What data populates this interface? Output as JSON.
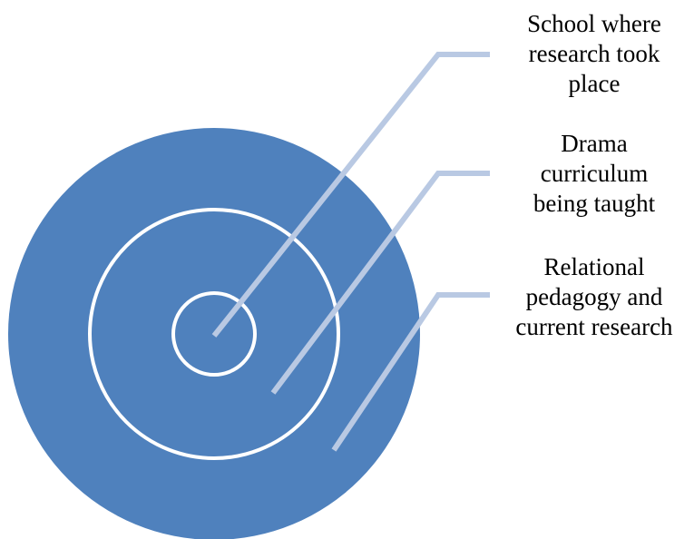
{
  "diagram": {
    "type": "concentric-circles",
    "colors": {
      "outer_fill": "#4f81bd",
      "ring_stroke": "#ffffff",
      "leader_line": "#b9c9e3"
    },
    "layers": [
      {
        "id": "inner",
        "label": "School where\nresearch took\nplace"
      },
      {
        "id": "middle",
        "label": "Drama\ncurriculum\nbeing taught"
      },
      {
        "id": "outer",
        "label": "Relational\npedagogy and\ncurrent research"
      }
    ]
  }
}
